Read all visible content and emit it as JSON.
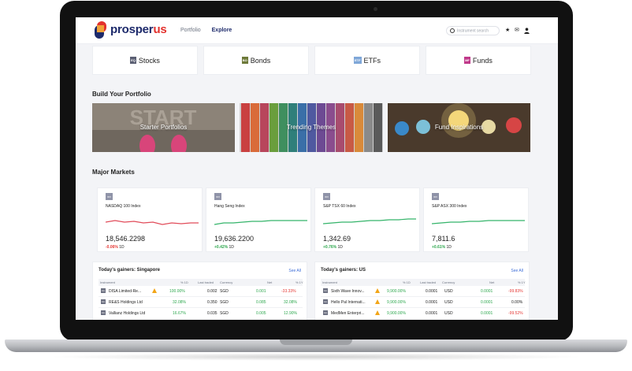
{
  "brand": {
    "name_main": "prosper",
    "name_accent": "us"
  },
  "nav": {
    "items": [
      {
        "label": "Portfolio"
      },
      {
        "label": "Explore"
      }
    ]
  },
  "search": {
    "placeholder": "Instrument search"
  },
  "asset_classes": [
    {
      "label": "Stocks",
      "badge": "EQ",
      "color": "#5b5f73"
    },
    {
      "label": "Bonds",
      "badge": "BO",
      "color": "#6e7a3a"
    },
    {
      "label": "ETFs",
      "badge": "ETF",
      "color": "#7fa7d8"
    },
    {
      "label": "Funds",
      "badge": "MF",
      "color": "#c0398a"
    }
  ],
  "build_portfolio": {
    "title": "Build Your Portfolio",
    "tiles": [
      {
        "label": "Starter Portfolios"
      },
      {
        "label": "Trending Themes"
      },
      {
        "label": "Fund Inspirations"
      }
    ]
  },
  "major_markets": {
    "title": "Major Markets",
    "indices": [
      {
        "badge": "IDX",
        "name": "NASDAQ 100 Index",
        "value": "18,546.2298",
        "change": "-0.06%",
        "period": "1D",
        "trend": "neg"
      },
      {
        "badge": "IDX",
        "name": "Hang Seng Index",
        "value": "19,636.2200",
        "change": "+0.42%",
        "period": "1D",
        "trend": "pos"
      },
      {
        "badge": "IDX",
        "name": "S&P TSX 60 Index",
        "value": "1,342.69",
        "change": "+0.76%",
        "period": "1D",
        "trend": "pos"
      },
      {
        "badge": "IDX",
        "name": "S&P ASX 300 Index",
        "value": "7,811.6",
        "change": "+0.61%",
        "period": "1D",
        "trend": "pos"
      }
    ]
  },
  "gainers_sg": {
    "title": "Today's gainers: Singapore",
    "see_all": "See All",
    "columns": {
      "instrument": "Instrument",
      "pct1d": "% 1D",
      "last": "Last traded",
      "currency": "Currency",
      "net": "Net",
      "pct1y": "% 1Y"
    },
    "rows": [
      {
        "badge": "EQ",
        "name": "DISA Limited-Re...",
        "warn": true,
        "pct1d": "100.00%",
        "last": "0.002",
        "currency": "SGD",
        "net": "0.001",
        "pct1y": "-33.33%",
        "y_trend": "neg"
      },
      {
        "badge": "EQ",
        "name": "RE&S Holdings Ltd",
        "warn": false,
        "pct1d": "32.08%",
        "last": "0.350",
        "currency": "SGD",
        "net": "0.085",
        "pct1y": "32.08%",
        "y_trend": "pos"
      },
      {
        "badge": "EQ",
        "name": "Vallianz Holdings Ltd",
        "warn": false,
        "pct1d": "16.67%",
        "last": "0.035",
        "currency": "SGD",
        "net": "0.005",
        "pct1y": "12.90%",
        "y_trend": "pos"
      }
    ]
  },
  "gainers_us": {
    "title": "Today's gainers: US",
    "see_all": "See All",
    "columns": {
      "instrument": "Instrument",
      "pct1d": "% 1D",
      "last": "Last traded",
      "currency": "Currency",
      "net": "Net",
      "pct1y": "% 1Y"
    },
    "rows": [
      {
        "badge": "EQ",
        "name": "Sixth Wave Innov...",
        "warn": true,
        "pct1d": "9,900.00%",
        "last": "0.0001",
        "currency": "USD",
        "net": "0.0001",
        "pct1y": "-99.83%",
        "y_trend": "neg"
      },
      {
        "badge": "EQ",
        "name": "Hello Pal Internati...",
        "warn": true,
        "pct1d": "9,900.00%",
        "last": "0.0001",
        "currency": "USD",
        "net": "0.0001",
        "pct1y": "0.00%",
        "y_trend": "neutral"
      },
      {
        "badge": "EQ",
        "name": "MedMen Enterpri...",
        "warn": true,
        "pct1d": "9,900.00%",
        "last": "0.0001",
        "currency": "USD",
        "net": "0.0001",
        "pct1y": "-99.52%",
        "y_trend": "neg"
      }
    ]
  },
  "colors": {
    "navy": "#1d2a6b",
    "accent_red": "#e3312d",
    "positive": "#2fa84f",
    "negative": "#e53935",
    "link": "#3f6fd8"
  },
  "icons": {
    "search": "search-icon",
    "watchlist": "star-icon",
    "messages": "mail-icon",
    "account": "user-icon",
    "warning": "warning-icon"
  }
}
